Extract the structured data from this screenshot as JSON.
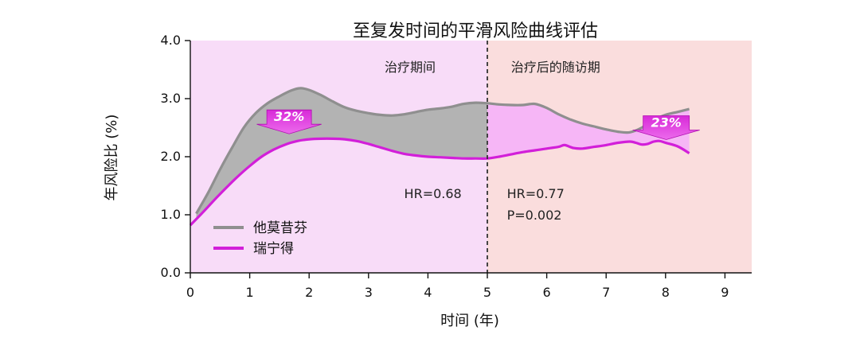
{
  "chart_data": {
    "type": "line",
    "title": "至复发时间的平滑风险曲线评估",
    "xlabel": "时间 (年)",
    "ylabel": "年风险比 (%)",
    "xlim": [
      0,
      9.45
    ],
    "ylim": [
      0,
      4
    ],
    "x_ticks": [
      "0",
      "1",
      "2",
      "3",
      "4",
      "5",
      "6",
      "7",
      "8",
      "9"
    ],
    "y_ticks": [
      "0.0",
      "1.0",
      "2.0",
      "3.0",
      "4.0"
    ],
    "series": [
      {
        "name": "他莫昔芬",
        "color": "#8f8f8f",
        "x": [
          0.1,
          0.3,
          0.5,
          0.7,
          0.9,
          1.1,
          1.3,
          1.5,
          1.7,
          1.85,
          2.0,
          2.2,
          2.4,
          2.6,
          2.8,
          3.0,
          3.2,
          3.4,
          3.6,
          3.8,
          4.0,
          4.2,
          4.4,
          4.6,
          4.8,
          5.0,
          5.2,
          5.4,
          5.6,
          5.8,
          6.0,
          6.2,
          6.4,
          6.6,
          6.8,
          7.0,
          7.2,
          7.4,
          7.6,
          7.8,
          8.0,
          8.2,
          8.4
        ],
        "values": [
          1.02,
          1.38,
          1.78,
          2.15,
          2.5,
          2.75,
          2.92,
          3.04,
          3.14,
          3.18,
          3.15,
          3.06,
          2.95,
          2.85,
          2.79,
          2.75,
          2.72,
          2.71,
          2.73,
          2.77,
          2.81,
          2.83,
          2.86,
          2.91,
          2.93,
          2.92,
          2.9,
          2.89,
          2.89,
          2.91,
          2.84,
          2.73,
          2.64,
          2.57,
          2.52,
          2.47,
          2.43,
          2.42,
          2.5,
          2.63,
          2.72,
          2.77,
          2.82
        ]
      },
      {
        "name": "瑞宁得",
        "color": "#d21fd9",
        "x": [
          0.0,
          0.2,
          0.4,
          0.6,
          0.8,
          1.0,
          1.2,
          1.4,
          1.6,
          1.8,
          2.0,
          2.2,
          2.4,
          2.6,
          2.8,
          3.0,
          3.2,
          3.4,
          3.6,
          3.8,
          4.0,
          4.2,
          4.4,
          4.6,
          4.8,
          5.0,
          5.2,
          5.4,
          5.6,
          5.8,
          6.0,
          6.2,
          6.3,
          6.45,
          6.6,
          6.8,
          7.0,
          7.2,
          7.4,
          7.5,
          7.6,
          7.7,
          7.8,
          7.9,
          8.0,
          8.2,
          8.4
        ],
        "values": [
          0.82,
          1.03,
          1.25,
          1.46,
          1.66,
          1.84,
          2.0,
          2.12,
          2.21,
          2.27,
          2.3,
          2.31,
          2.31,
          2.3,
          2.27,
          2.22,
          2.16,
          2.1,
          2.05,
          2.02,
          2.0,
          1.99,
          1.98,
          1.97,
          1.97,
          1.97,
          2.0,
          2.04,
          2.08,
          2.11,
          2.14,
          2.17,
          2.2,
          2.15,
          2.14,
          2.17,
          2.2,
          2.24,
          2.26,
          2.24,
          2.21,
          2.22,
          2.26,
          2.27,
          2.24,
          2.18,
          2.06
        ]
      }
    ],
    "regions": [
      {
        "label": "治疗期间",
        "from": 0,
        "to": 5,
        "color": "#f8dcf8"
      },
      {
        "label": "治疗后的随访期",
        "from": 5,
        "to": 9.45,
        "color": "#fadddd"
      }
    ],
    "annotations": [
      {
        "text": "32%",
        "x": 2.2,
        "y": 2.6
      },
      {
        "text": "23%",
        "x": 8.95,
        "y": 2.5
      }
    ],
    "hr_labels": {
      "during": [
        "HR=0.68"
      ],
      "after": [
        "HR=0.77",
        "P=0.002"
      ]
    },
    "legend": "bottom-left"
  }
}
